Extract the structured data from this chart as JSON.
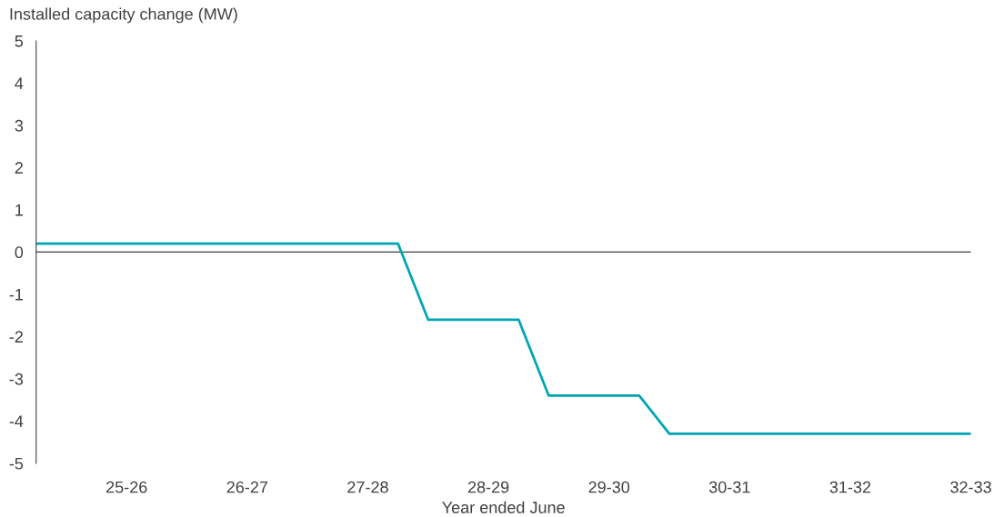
{
  "chart_data": {
    "type": "line",
    "ylabel": "Installed capacity change (MW)",
    "xlabel": "Year ended June",
    "categories": [
      null,
      null,
      null,
      "25-26",
      null,
      null,
      null,
      "26-27",
      null,
      null,
      null,
      "27-28",
      null,
      null,
      null,
      "28-29",
      null,
      null,
      null,
      "29-30",
      null,
      null,
      null,
      "30-31",
      null,
      null,
      null,
      "31-32",
      null,
      null,
      null,
      "32-33"
    ],
    "ylim": [
      -5,
      5
    ],
    "yticks": [
      -5,
      -4,
      -3,
      -2,
      -1,
      0,
      1,
      2,
      3,
      4,
      5
    ],
    "grid": false,
    "ref_lines": [
      {
        "axis": "y",
        "value": 0,
        "color": "#404040"
      }
    ],
    "series": [
      {
        "color": "#00a6b4",
        "values": [
          0.2,
          0.2,
          0.2,
          0.2,
          0.2,
          0.2,
          0.2,
          0.2,
          0.2,
          0.2,
          0.2,
          0.2,
          0.2,
          -1.6,
          -1.6,
          -1.6,
          -1.6,
          -3.4,
          -3.4,
          -3.4,
          -3.4,
          -4.3,
          -4.3,
          -4.3,
          -4.3,
          -4.3,
          -4.3,
          -4.3,
          -4.3,
          -4.3,
          -4.3,
          -4.3
        ]
      }
    ]
  }
}
